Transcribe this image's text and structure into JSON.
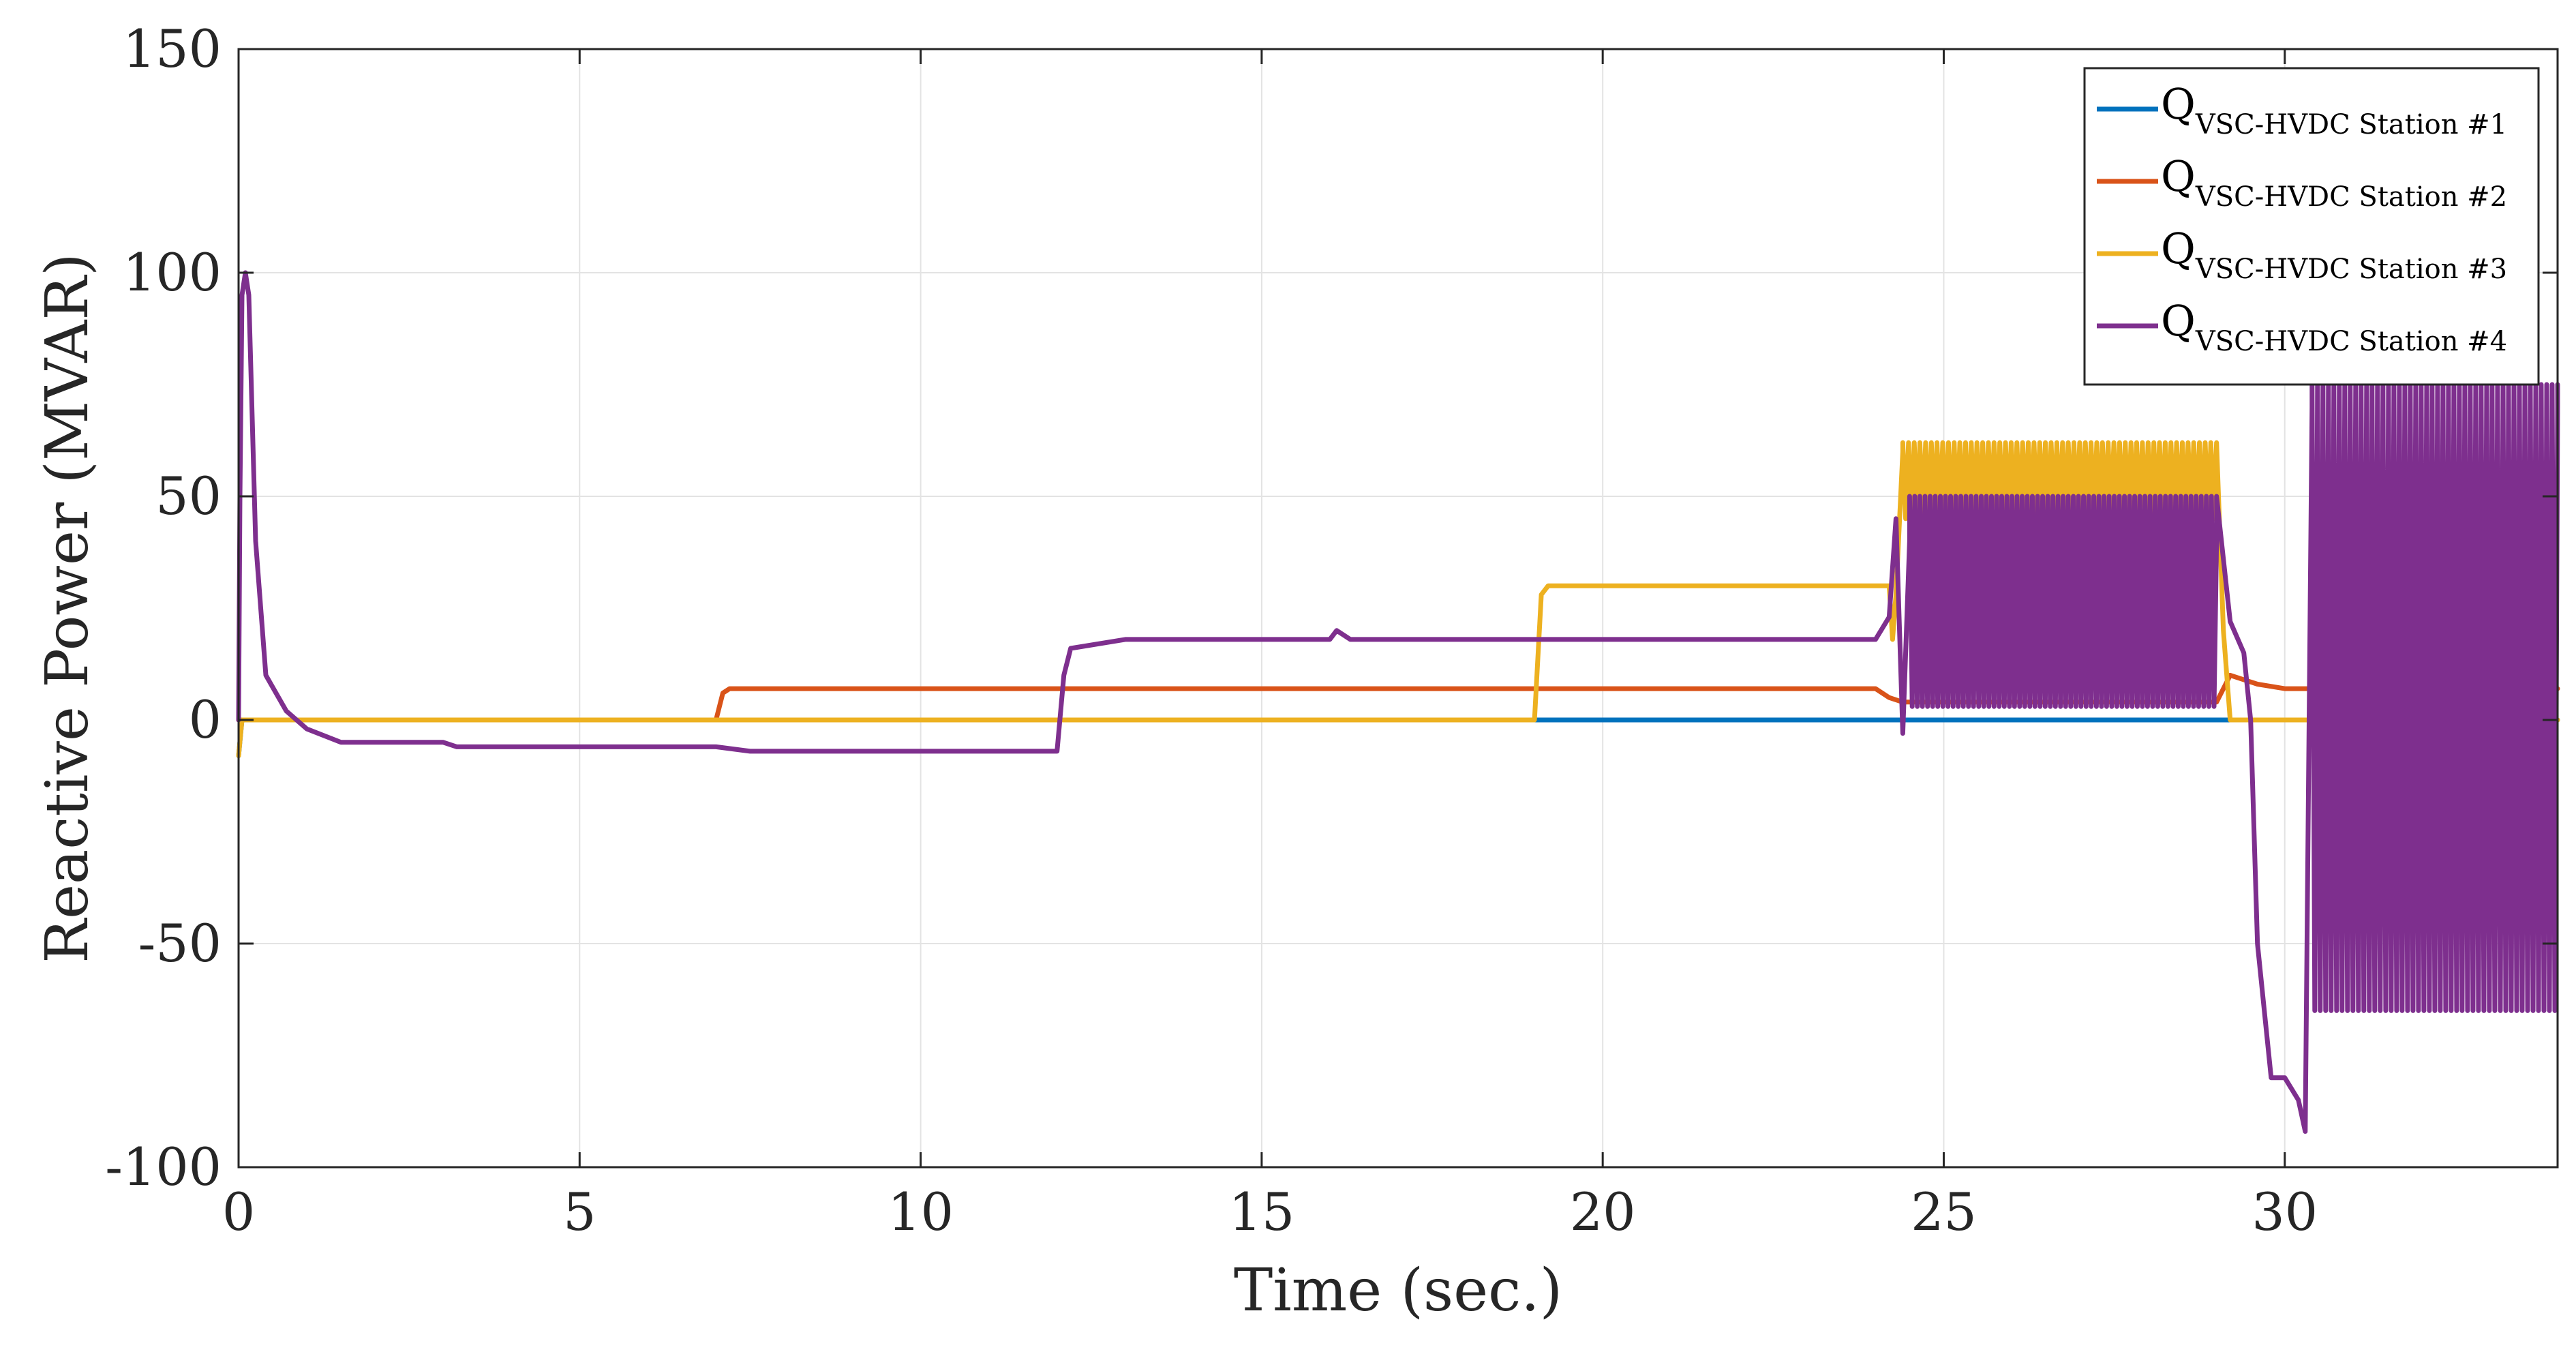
{
  "chart_data": {
    "type": "line",
    "title": "",
    "xlabel": "Time (sec.)",
    "ylabel": "Reactive Power (MVAR)",
    "xlim": [
      0,
      34
    ],
    "ylim": [
      -100,
      150
    ],
    "grid": true,
    "x_ticks": [
      0,
      5,
      10,
      15,
      20,
      25,
      30
    ],
    "x_tick_labels": [
      "0",
      "5",
      "10",
      "15",
      "20",
      "25",
      "30"
    ],
    "y_ticks": [
      -100,
      -50,
      0,
      50,
      100,
      150
    ],
    "y_tick_labels": [
      "-100",
      "-50",
      "0",
      "50",
      "100",
      "150"
    ],
    "legend_position": "top-right",
    "series": [
      {
        "name": "Q",
        "subscript": "VSC-HVDC Station #1",
        "color": "#0072BD",
        "points": [
          [
            0,
            -8
          ],
          [
            0.05,
            0
          ],
          [
            19,
            0
          ],
          [
            24,
            0
          ],
          [
            29,
            0
          ],
          [
            34,
            0
          ]
        ]
      },
      {
        "name": "Q",
        "subscript": "VSC-HVDC Station #2",
        "color": "#D95319",
        "points": [
          [
            0,
            0
          ],
          [
            7,
            0
          ],
          [
            7.1,
            6
          ],
          [
            7.2,
            7
          ],
          [
            24,
            7
          ],
          [
            24.2,
            5
          ],
          [
            24.4,
            4
          ],
          [
            29,
            4
          ],
          [
            29.2,
            10
          ],
          [
            29.6,
            8
          ],
          [
            30,
            7
          ],
          [
            31,
            7
          ],
          [
            34,
            7
          ]
        ]
      },
      {
        "name": "Q",
        "subscript": "VSC-HVDC Station #3",
        "color": "#EDB120",
        "points": [
          [
            0,
            -8
          ],
          [
            0.05,
            0
          ],
          [
            19,
            0
          ],
          [
            19.1,
            28
          ],
          [
            19.2,
            30
          ],
          [
            24.2,
            30
          ],
          [
            24.25,
            18
          ],
          [
            24.3,
            28
          ],
          [
            24.4,
            60
          ],
          [
            29,
            62
          ],
          [
            29.1,
            20
          ],
          [
            29.2,
            0
          ],
          [
            34,
            0
          ]
        ],
        "oscillation": {
          "from": 24.4,
          "to": 29,
          "high": 62,
          "low": 45,
          "cycles": 55
        }
      },
      {
        "name": "Q",
        "subscript": "VSC-HVDC Station #4",
        "color": "#7E2F8E",
        "points": [
          [
            0,
            0
          ],
          [
            0.02,
            50
          ],
          [
            0.05,
            95
          ],
          [
            0.1,
            100
          ],
          [
            0.15,
            95
          ],
          [
            0.25,
            40
          ],
          [
            0.4,
            10
          ],
          [
            0.7,
            2
          ],
          [
            1,
            -2
          ],
          [
            1.5,
            -5
          ],
          [
            3,
            -5
          ],
          [
            3.2,
            -6
          ],
          [
            5,
            -6
          ],
          [
            7,
            -6
          ],
          [
            7.5,
            -7
          ],
          [
            10,
            -7
          ],
          [
            12,
            -7
          ],
          [
            12.1,
            10
          ],
          [
            12.2,
            16
          ],
          [
            13,
            18
          ],
          [
            16,
            18
          ],
          [
            16.1,
            20
          ],
          [
            16.3,
            18
          ],
          [
            20,
            18
          ],
          [
            24,
            18
          ],
          [
            24.2,
            23
          ],
          [
            24.3,
            45
          ],
          [
            24.4,
            -3
          ],
          [
            24.5,
            40
          ],
          [
            29,
            40
          ],
          [
            29.2,
            22
          ],
          [
            29.4,
            15
          ],
          [
            29.5,
            0
          ],
          [
            29.6,
            -50
          ],
          [
            29.8,
            -80
          ],
          [
            30,
            -80
          ],
          [
            30.2,
            -85
          ],
          [
            30.3,
            -92
          ],
          [
            30.4,
            70
          ],
          [
            34,
            70
          ]
        ],
        "oscillation_1": {
          "from": 24.5,
          "to": 29,
          "high": 50,
          "low": 3,
          "cycles": 60
        },
        "oscillation_2": {
          "from": 30.4,
          "to": 34,
          "high": 75,
          "low": -65,
          "cycles": 45
        }
      }
    ]
  }
}
